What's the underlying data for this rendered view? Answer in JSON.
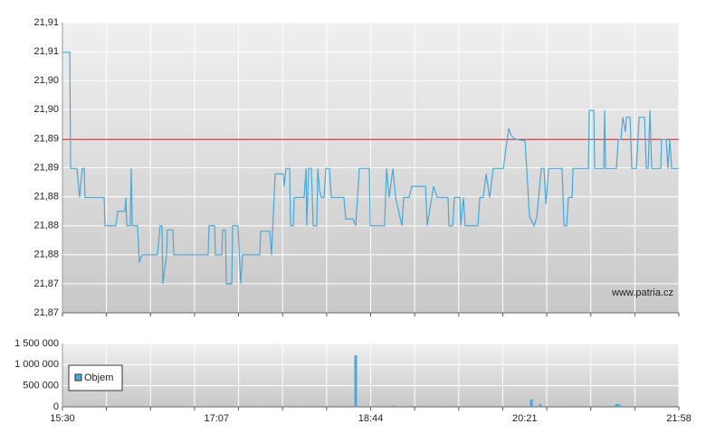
{
  "chart_data": [
    {
      "type": "line",
      "watermark": "www.patria.cz",
      "color": "#4aa8d8",
      "reference_line": {
        "value": 21.8926,
        "color": "#cc0000"
      },
      "xlim": [
        930,
        1318
      ],
      "xgrid": [
        930,
        957.71,
        985.43,
        1013.14,
        1040.86,
        1068.57,
        1096.29,
        1124,
        1151.71,
        1179.43,
        1207.14,
        1234.86,
        1262.57,
        1290.29,
        1318
      ],
      "ylim": [
        21.8675,
        21.9095
      ],
      "yticks": [
        {
          "value": 21.8675,
          "label": "21,87"
        },
        {
          "value": 21.8717,
          "label": "21,87"
        },
        {
          "value": 21.8759,
          "label": "21,88"
        },
        {
          "value": 21.8801,
          "label": "21,88"
        },
        {
          "value": 21.8843,
          "label": "21,88"
        },
        {
          "value": 21.8885,
          "label": "21,89"
        },
        {
          "value": 21.8927,
          "label": "21,89"
        },
        {
          "value": 21.8969,
          "label": "21,90"
        },
        {
          "value": 21.9011,
          "label": "21,90"
        },
        {
          "value": 21.9053,
          "label": "21,91"
        },
        {
          "value": 21.9095,
          "label": "21,91"
        }
      ],
      "grid": true,
      "x": [
        930.0,
        934.6,
        935.1,
        939.1,
        940.8,
        942.5,
        943.7,
        944.2,
        956.2,
        956.8,
        963.6,
        964.8,
        969.3,
        969.9,
        970.5,
        972.7,
        973.3,
        973.9,
        977.3,
        978.4,
        980.1,
        989.8,
        991.5,
        992.7,
        993.2,
        995.5,
        996.1,
        999.5,
        1000.1,
        1021.7,
        1022.3,
        1025.7,
        1026.3,
        1030.3,
        1030.9,
        1032.6,
        1033.1,
        1036.6,
        1037.1,
        1040.5,
        1042.2,
        1043.4,
        1054.2,
        1054.8,
        1060.5,
        1061.6,
        1063.9,
        1069.0,
        1069.6,
        1070.7,
        1073.0,
        1073.6,
        1075.3,
        1075.9,
        1082.1,
        1083.3,
        1083.8,
        1085.0,
        1086.7,
        1087.8,
        1090.1,
        1090.7,
        1091.8,
        1093.0,
        1094.7,
        1095.8,
        1098.1,
        1099.2,
        1107.2,
        1108.3,
        1112.9,
        1114.6,
        1116.9,
        1123.2,
        1123.7,
        1132.8,
        1134.0,
        1135.7,
        1138.0,
        1139.7,
        1143.7,
        1144.8,
        1148.2,
        1149.9,
        1158.5,
        1159.6,
        1163.6,
        1165.9,
        1172.7,
        1173.3,
        1175.6,
        1176.7,
        1180.1,
        1180.7,
        1182.4,
        1183.5,
        1191.5,
        1192.7,
        1194.9,
        1196.7,
        1198.9,
        1201.2,
        1207.5,
        1210.9,
        1212.6,
        1215.5,
        1221.2,
        1224.0,
        1226.9,
        1228.6,
        1231.4,
        1233.1,
        1234.3,
        1236.0,
        1244.5,
        1245.7,
        1247.4,
        1248.5,
        1250.8,
        1251.4,
        1261.1,
        1261.6,
        1264.5,
        1265.0,
        1270.7,
        1271.3,
        1271.9,
        1278.7,
        1279.9,
        1281.6,
        1282.7,
        1284.4,
        1285.0,
        1287.3,
        1288.4,
        1291.3,
        1293.0,
        1296.4,
        1297.5,
        1298.7,
        1299.8,
        1300.9,
        1306.6,
        1307.2,
        1310.0,
        1311.1,
        1312.3,
        1313.5,
        1318.0
      ],
      "values": [
        21.9052,
        21.9052,
        21.8884,
        21.8884,
        21.8842,
        21.8884,
        21.8884,
        21.8842,
        21.8842,
        21.8801,
        21.8801,
        21.8822,
        21.8822,
        21.8842,
        21.8801,
        21.8801,
        21.8884,
        21.8801,
        21.8801,
        21.8748,
        21.8759,
        21.8759,
        21.8801,
        21.8801,
        21.8717,
        21.8759,
        21.8795,
        21.8795,
        21.8759,
        21.8759,
        21.8801,
        21.8801,
        21.8759,
        21.8759,
        21.8795,
        21.8795,
        21.8717,
        21.8717,
        21.8801,
        21.8801,
        21.8717,
        21.8759,
        21.8759,
        21.8793,
        21.8793,
        21.8759,
        21.8876,
        21.8876,
        21.8858,
        21.8884,
        21.8884,
        21.8801,
        21.8801,
        21.8842,
        21.8842,
        21.8884,
        21.8801,
        21.8884,
        21.8884,
        21.8801,
        21.8801,
        21.8884,
        21.8853,
        21.8842,
        21.8842,
        21.8884,
        21.8884,
        21.8842,
        21.8842,
        21.8811,
        21.8811,
        21.8801,
        21.8884,
        21.8884,
        21.8801,
        21.8801,
        21.8884,
        21.8842,
        21.8884,
        21.8842,
        21.8801,
        21.8842,
        21.8842,
        21.8858,
        21.8858,
        21.8801,
        21.8858,
        21.8842,
        21.8842,
        21.8801,
        21.8801,
        21.8842,
        21.8842,
        21.8801,
        21.8842,
        21.8801,
        21.8801,
        21.8842,
        21.8842,
        21.8876,
        21.8842,
        21.8884,
        21.8884,
        21.8942,
        21.8931,
        21.8926,
        21.8924,
        21.8814,
        21.8801,
        21.8814,
        21.8884,
        21.8884,
        21.8832,
        21.8884,
        21.8884,
        21.8801,
        21.8801,
        21.8842,
        21.8842,
        21.8884,
        21.8884,
        21.8968,
        21.8968,
        21.8884,
        21.8884,
        21.8968,
        21.8884,
        21.8884,
        21.8926,
        21.8926,
        21.8958,
        21.8937,
        21.8958,
        21.8958,
        21.8884,
        21.8884,
        21.8958,
        21.8958,
        21.8884,
        21.8884,
        21.8968,
        21.8884,
        21.8884,
        21.8926,
        21.8926,
        21.8884,
        21.8926,
        21.8884,
        21.8884
      ]
    },
    {
      "type": "bar",
      "legend": "lower-left",
      "xlim": [
        930,
        1318
      ],
      "xgrid": [
        930,
        957.71,
        985.43,
        1013.14,
        1040.86,
        1068.57,
        1096.29,
        1124,
        1151.71,
        1179.43,
        1207.14,
        1234.86,
        1262.57,
        1290.29,
        1318
      ],
      "xticks": [
        {
          "value": 930,
          "label": "15:30"
        },
        {
          "value": 1027,
          "label": "17:07"
        },
        {
          "value": 1124,
          "label": "18:44"
        },
        {
          "value": 1221,
          "label": "20:21"
        },
        {
          "value": 1318,
          "label": "21:58"
        }
      ],
      "ylim": [
        0,
        1500000
      ],
      "yticks": [
        0,
        {
          "value": 500000,
          "label": "500 000"
        },
        {
          "value": 1000000,
          "label": "1 000 000"
        },
        {
          "value": 1500000,
          "label": "1 500 000"
        }
      ],
      "grid": true,
      "x": [
        974.4,
        1006.4,
        1013.2,
        1020.6,
        1051.9,
        1078.7,
        1095.8,
        1114.6,
        1138.5,
        1149.9,
        1168.2,
        1225.2,
        1230.8,
        1241.1,
        1278.7,
        1280.4,
        1316.9
      ],
      "series": [
        {
          "name": "Objem",
          "color": "#4aa8d8",
          "values": [
            20000,
            15000,
            15000,
            15000,
            15000,
            15000,
            20000,
            1220000,
            30000,
            25000,
            20000,
            180000,
            60000,
            20000,
            60000,
            60000,
            20000
          ]
        }
      ]
    }
  ]
}
